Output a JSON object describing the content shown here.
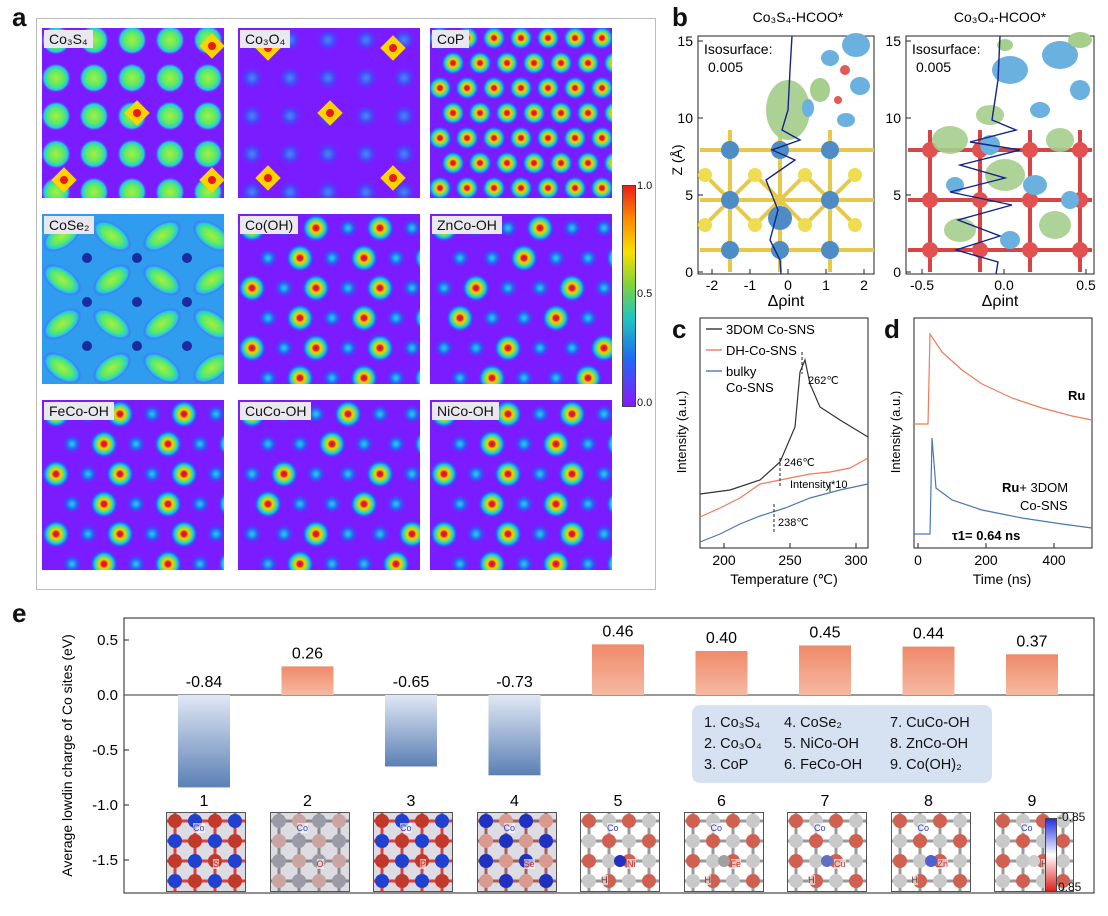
{
  "panel_a": {
    "letter": "a",
    "tiles": [
      {
        "label": "Co₃S₄",
        "pattern": "co3s4"
      },
      {
        "label": "Co₃O₄",
        "pattern": "co3o4"
      },
      {
        "label": "CoP",
        "pattern": "dense"
      },
      {
        "label": "CoSe₂",
        "pattern": "cose2"
      },
      {
        "label": "Co(OH)",
        "pattern": "hex"
      },
      {
        "label": "ZnCo-OH",
        "pattern": "hex2"
      },
      {
        "label": "FeCo-OH",
        "pattern": "hex"
      },
      {
        "label": "CuCo-OH",
        "pattern": "hex2"
      },
      {
        "label": "NiCo-OH",
        "pattern": "hex"
      }
    ],
    "colorbar": {
      "max_label": "1.0",
      "mid_label": "0.5",
      "min_label": "0.0"
    }
  },
  "panel_b": {
    "letter": "b",
    "left_title": "Co₃S₄-HCOO*",
    "right_title": "Co₃O₄-HCOO*",
    "isosurface_label": "Isosurface:",
    "isosurface_value": "0.005",
    "ylabel": "Z (Å)",
    "xlabel": "Δρint",
    "left_yticks": [
      "0",
      "5",
      "10",
      "15"
    ],
    "left_xticks": [
      "-2",
      "-1",
      "0",
      "1",
      "2"
    ],
    "right_yticks": [
      "0",
      "5",
      "10",
      "15"
    ],
    "right_xticks": [
      "-0.5",
      "0.0",
      "0.5"
    ]
  },
  "panel_c": {
    "letter": "c",
    "legend": [
      "3DOM Co-SNS",
      "DH-Co-SNS",
      "bulky Co-SNS"
    ],
    "ylabel": "Intensity (a.u.)",
    "xlabel": "Temperature (℃)",
    "xticks": [
      "200",
      "250",
      "300"
    ],
    "annotations": {
      "peak1": "262℃",
      "peak2": "246℃",
      "peak3": "238℃",
      "scale": "Intensity*10"
    },
    "colors": {
      "black": "#333333",
      "orange": "#f07a5a",
      "blue": "#4a78b0"
    }
  },
  "panel_d": {
    "letter": "d",
    "ylabel": "Intensity (a.u.)",
    "xlabel": "Time (ns)",
    "xticks": [
      "0",
      "200",
      "400"
    ],
    "label_top": "Ru",
    "label_bottom_bold": "Ru",
    "label_bottom_rest": "+ 3DOM",
    "label_bottom_line2": "Co-SNS",
    "tau_label": "τ1= 0.64 ns"
  },
  "panel_e": {
    "letter": "e",
    "ylabel": "Average lowdin charge of Co sites  (eV)",
    "yticks": [
      "0.5",
      "0.0",
      "-0.5",
      "-1.0",
      "-1.5"
    ],
    "chart_data": {
      "type": "bar",
      "categories": [
        "1",
        "2",
        "3",
        "4",
        "5",
        "6",
        "7",
        "8",
        "9"
      ],
      "values": [
        -0.84,
        0.26,
        -0.65,
        -0.73,
        0.46,
        0.4,
        0.45,
        0.44,
        0.37
      ],
      "value_labels": [
        "-0.84",
        "0.26",
        "-0.65",
        "-0.73",
        "0.46",
        "0.40",
        "0.45",
        "0.44",
        "0.37"
      ],
      "ylabel": "Average lowdin charge of Co sites  (eV)",
      "ylim": [
        -1.8,
        0.7
      ],
      "positive_color": "#ef8a6a",
      "negative_color": "#5b80b5"
    },
    "legend_col1": [
      "1. Co₃S₄",
      "2. Co₃O₄",
      "3. CoP"
    ],
    "legend_col2": [
      "4. CoSe₂",
      "5. NiCo-OH",
      "6. FeCo-OH"
    ],
    "legend_col3": [
      "7. CuCo-OH",
      "8. ZnCo-OH",
      "9. Co(OH)₂"
    ],
    "colorbar": {
      "top": "-0.85",
      "bottom": "0.85"
    },
    "structure_labels": [
      [
        "Co",
        "S"
      ],
      [
        "Co",
        "O"
      ],
      [
        "Co",
        "P"
      ],
      [
        "Co",
        "Se"
      ],
      [
        "Co",
        "Ni",
        "H"
      ],
      [
        "Co",
        "Fe",
        "H"
      ],
      [
        "Co",
        "Cu",
        "H"
      ],
      [
        "Co",
        "Zn",
        "H"
      ],
      [
        "Co",
        "H"
      ]
    ]
  }
}
